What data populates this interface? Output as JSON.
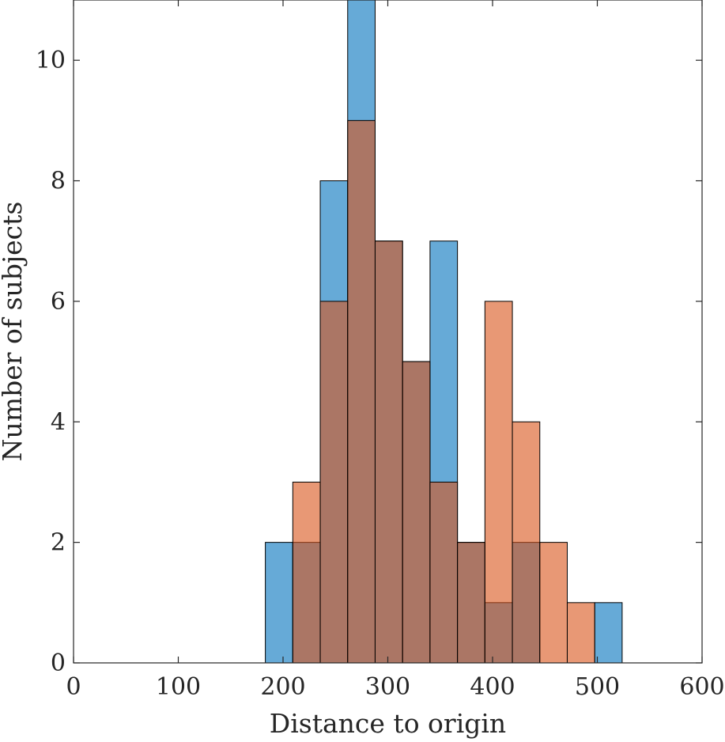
{
  "chart_data": {
    "type": "bar",
    "bin_edges": [
      183.1,
      209.3,
      235.5,
      261.7,
      287.9,
      314.1,
      340.3,
      366.5,
      392.7,
      418.9,
      445.1,
      471.3,
      497.5,
      523.7
    ],
    "series": [
      {
        "color": "#0072BD",
        "values": [
          2,
          2,
          8,
          11,
          7,
          5,
          7,
          2,
          1,
          2,
          0,
          0,
          1
        ]
      },
      {
        "color": "#D95319",
        "values": [
          0,
          3,
          6,
          9,
          7,
          5,
          3,
          2,
          6,
          4,
          2,
          1,
          0
        ]
      }
    ],
    "xlabel": "Distance to origin",
    "ylabel": "Number of subjects",
    "xlim": [
      0,
      600
    ],
    "ylim": [
      0,
      11
    ],
    "xticks": [
      "0",
      "100",
      "200",
      "300",
      "400",
      "500",
      "600"
    ],
    "yticks": [
      "0",
      "2",
      "4",
      "6",
      "8",
      "10"
    ],
    "grid": false,
    "legend": "none"
  }
}
